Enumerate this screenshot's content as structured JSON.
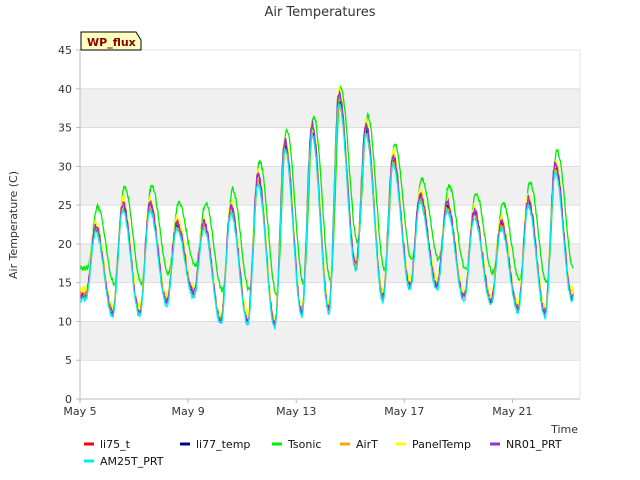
{
  "chart_data": {
    "type": "line",
    "title": "Air Temperatures",
    "xlabel": "Time",
    "ylabel": "Air Temperature (C)",
    "badge": "WP_flux",
    "ylim": [
      0,
      45
    ],
    "yticks": [
      0,
      5,
      10,
      15,
      20,
      25,
      30,
      35,
      40,
      45
    ],
    "xlim": [
      "2024-05-05",
      "2024-05-23T12:00"
    ],
    "xticks": [
      {
        "label": "May 5",
        "date": "2024-05-05"
      },
      {
        "label": "May 9",
        "date": "2024-05-09"
      },
      {
        "label": "May 13",
        "date": "2024-05-13"
      },
      {
        "label": "May 17",
        "date": "2024-05-17"
      },
      {
        "label": "May 21",
        "date": "2024-05-21"
      }
    ],
    "grid": "horizontal bands",
    "legend_position": "bottom",
    "daily_extremes": {
      "dates": [
        "2024-05-05",
        "2024-05-06",
        "2024-05-07",
        "2024-05-08",
        "2024-05-09",
        "2024-05-10",
        "2024-05-11",
        "2024-05-12",
        "2024-05-13",
        "2024-05-14",
        "2024-05-15",
        "2024-05-16",
        "2024-05-17",
        "2024-05-18",
        "2024-05-19",
        "2024-05-20",
        "2024-05-21",
        "2024-05-22",
        "2024-05-23"
      ],
      "min": [
        13.2,
        11.0,
        11.0,
        12.5,
        13.5,
        10.0,
        10.0,
        9.5,
        11.0,
        11.5,
        17.0,
        13.0,
        14.5,
        14.5,
        13.0,
        12.5,
        11.5,
        11.0,
        13.0
      ],
      "max": [
        22.0,
        25.0,
        25.0,
        22.5,
        22.5,
        24.5,
        28.5,
        33.0,
        35.0,
        39.0,
        35.0,
        31.0,
        26.0,
        25.0,
        24.0,
        22.5,
        25.5,
        30.0,
        30.0
      ],
      "peak_hour": 14,
      "trough_hour": 5
    },
    "series": [
      {
        "name": "li75_t",
        "color": "#ff0000",
        "offset": 0.3,
        "amp": 1.0,
        "noise": 0.4
      },
      {
        "name": "li77_temp",
        "color": "#00008b",
        "offset": 0.0,
        "amp": 0.97,
        "noise": 0.3
      },
      {
        "name": "Tsonic",
        "color": "#00ee00",
        "offset": 3.2,
        "amp": 0.9,
        "noise": 0.3,
        "lag_hours": 1.5
      },
      {
        "name": "AirT",
        "color": "#ffa500",
        "offset": 0.0,
        "amp": 0.95,
        "noise": 0.4
      },
      {
        "name": "PanelTemp",
        "color": "#ffff00",
        "offset": 0.8,
        "amp": 1.0,
        "noise": 0.5
      },
      {
        "name": "NR01_PRT",
        "color": "#9932cc",
        "offset": 0.2,
        "amp": 1.02,
        "noise": 0.5
      },
      {
        "name": "AM25T_PRT",
        "color": "#00eeee",
        "offset": -0.5,
        "amp": 0.98,
        "noise": 0.3
      }
    ],
    "legend": [
      {
        "label": "li75_t",
        "color": "#ff0000"
      },
      {
        "label": "li77_temp",
        "color": "#00008b"
      },
      {
        "label": "Tsonic",
        "color": "#00ee00"
      },
      {
        "label": "AirT",
        "color": "#ffa500"
      },
      {
        "label": "PanelTemp",
        "color": "#ffff00"
      },
      {
        "label": "NR01_PRT",
        "color": "#9932cc"
      },
      {
        "label": "AM25T_PRT",
        "color": "#00eeee"
      }
    ],
    "colors": {
      "band": "#f0f0f0",
      "axis": "#bbbbbb",
      "badge_fill": "#ffffc0"
    }
  }
}
